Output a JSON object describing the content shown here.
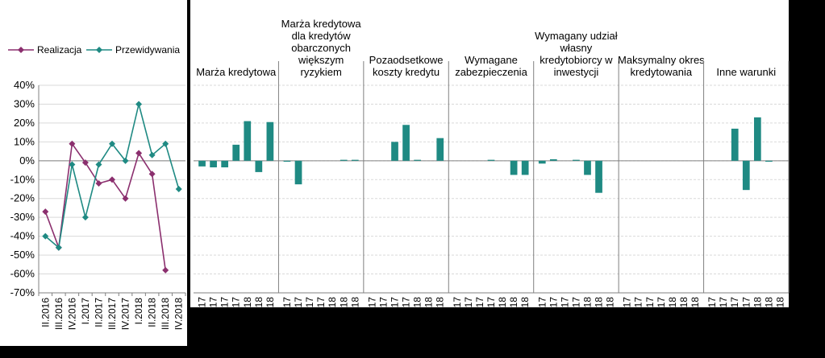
{
  "chart_data": [
    {
      "type": "line",
      "categories": [
        "II.2016",
        "III.2016",
        "IV.2016",
        "I.2017",
        "II.2017",
        "III.2017",
        "IV.2017",
        "I.2018",
        "II.2018",
        "III.2018",
        "IV.2018"
      ],
      "series": [
        {
          "name": "Realizacja",
          "color": "#8B2F6E",
          "values": [
            -27,
            -46,
            9,
            -1,
            -12,
            -10,
            -20,
            4,
            -7,
            -58,
            null
          ]
        },
        {
          "name": "Przewidywania",
          "color": "#1F8A83",
          "values": [
            -40,
            -46,
            -2,
            -30,
            -2,
            9,
            0,
            30,
            3,
            9,
            -15
          ]
        }
      ],
      "yticks": [
        "40%",
        "30%",
        "20%",
        "10%",
        "0%",
        "-10%",
        "-20%",
        "-30%",
        "-40%",
        "-50%",
        "-60%",
        "-70%"
      ],
      "ylim": [
        -70,
        40
      ],
      "legend": "top",
      "grid": true
    },
    {
      "type": "bar",
      "color": "#1F8A83",
      "grid": true,
      "ylim": [
        -70,
        40
      ],
      "groups": [
        {
          "title": [
            "Marża kredytowa"
          ],
          "ticks": [
            "17",
            "17",
            "17",
            "17",
            "18",
            "18",
            "18"
          ],
          "values": [
            -3,
            -3.5,
            -3.5,
            8.5,
            21,
            -6,
            20.5
          ]
        },
        {
          "title": [
            "Marża kredytowa",
            "dla kredytów",
            "obarczonych",
            "większym",
            "ryzykiem"
          ],
          "ticks": [
            "17",
            "17",
            "17",
            "17",
            "18",
            "18",
            "18"
          ],
          "values": [
            -0.5,
            -12.5,
            0,
            0,
            0,
            0.5,
            0.5
          ]
        },
        {
          "title": [
            "Pozaodsetkowe",
            "koszty kredytu"
          ],
          "ticks": [
            "17",
            "17",
            "17",
            "17",
            "18",
            "18",
            "18"
          ],
          "values": [
            0,
            0,
            10,
            19,
            0.5,
            0,
            12
          ]
        },
        {
          "title": [
            "Wymagane",
            "zabezpieczenia"
          ],
          "ticks": [
            "17",
            "17",
            "17",
            "17",
            "18",
            "18",
            "18"
          ],
          "values": [
            0,
            0,
            0,
            0.5,
            0,
            -7.5,
            -7.5
          ]
        },
        {
          "title": [
            "Wymagany udział",
            "własny",
            "kredytobiorcy w",
            "inwestycji"
          ],
          "ticks": [
            "17",
            "17",
            "17",
            "17",
            "18",
            "18",
            "18"
          ],
          "values": [
            -1.5,
            0.8,
            0,
            0.5,
            -7.5,
            -17,
            0
          ]
        },
        {
          "title": [
            "Maksymalny okres",
            "kredytowania"
          ],
          "ticks": [
            "17",
            "17",
            "17",
            "17",
            "18",
            "18",
            "18"
          ],
          "values": [
            0,
            0,
            0,
            0,
            0,
            0,
            0
          ]
        },
        {
          "title": [
            "Inne warunki"
          ],
          "ticks": [
            "17",
            "17",
            "17",
            "17",
            "18",
            "18",
            "18"
          ],
          "values": [
            0,
            0,
            17,
            -15.5,
            23,
            -0.5,
            0
          ]
        }
      ]
    }
  ]
}
